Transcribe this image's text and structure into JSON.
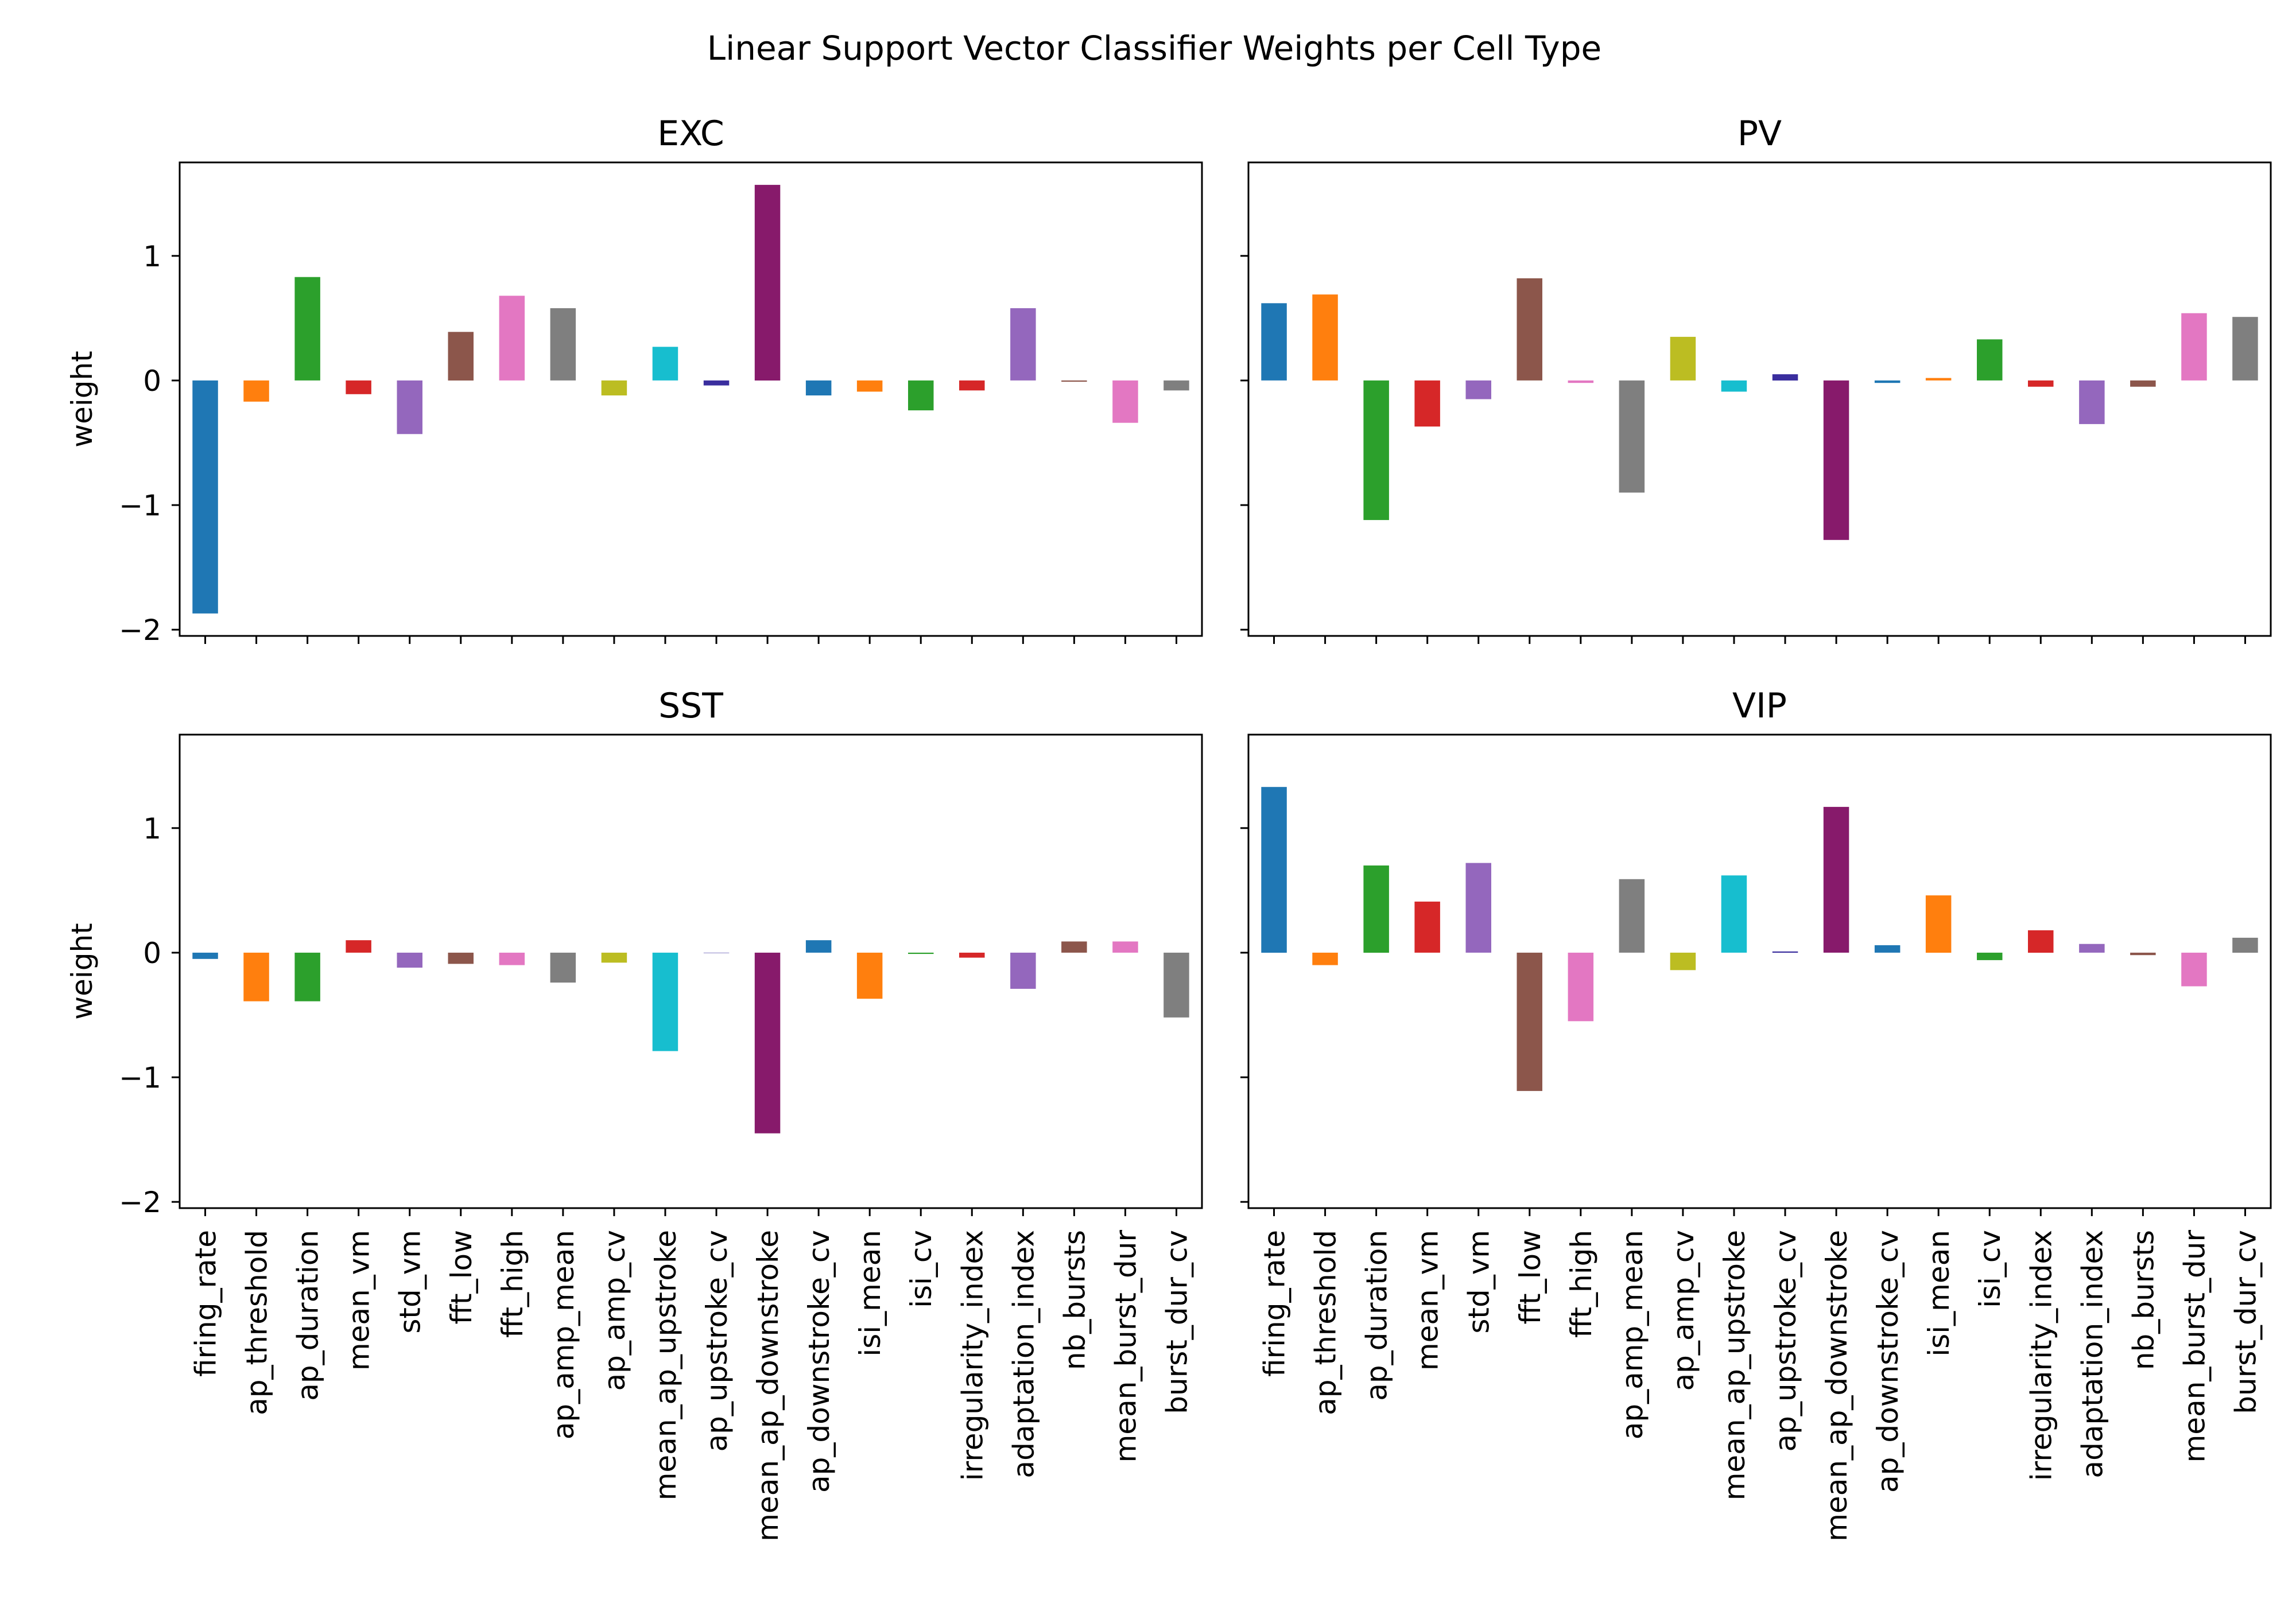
{
  "figure": {
    "title": "Linear Support Vector Classifier Weights per Cell Type"
  },
  "chart_data": [
    {
      "type": "bar",
      "title": "EXC",
      "xlabel": "",
      "ylabel": "weight",
      "ylim": [
        -2.05,
        1.75
      ],
      "yticks": [
        1,
        0,
        -1,
        -2
      ],
      "ytick_labels": [
        "1",
        "0",
        "−1",
        "−2"
      ],
      "categories": [
        "firing_rate",
        "ap_threshold",
        "ap_duration",
        "mean_vm",
        "std_vm",
        "fft_low",
        "fft_high",
        "ap_amp_mean",
        "ap_amp_cv",
        "mean_ap_upstroke",
        "ap_upstroke_cv",
        "mean_ap_downstroke",
        "ap_downstroke_cv",
        "isi_mean",
        "isi_cv",
        "irregularity_index",
        "adaptation_index",
        "nb_bursts",
        "mean_burst_dur",
        "burst_dur_cv"
      ],
      "values": [
        -1.87,
        -0.17,
        0.83,
        -0.11,
        -0.43,
        0.39,
        0.68,
        0.58,
        -0.12,
        0.27,
        -0.04,
        1.57,
        -0.12,
        -0.09,
        -0.24,
        -0.08,
        0.58,
        -0.01,
        -0.34,
        -0.08
      ],
      "colors": [
        "#1f77b4",
        "#ff7f0e",
        "#2ca02c",
        "#d62728",
        "#9467bd",
        "#8c564b",
        "#e377c2",
        "#7f7f7f",
        "#bcbd22",
        "#17becf",
        "#3a2e9e",
        "#871a6b",
        "#1f77b4",
        "#ff7f0e",
        "#2ca02c",
        "#d62728",
        "#9467bd",
        "#8c564b",
        "#e377c2",
        "#7f7f7f"
      ],
      "show_xtick_labels": false,
      "show_ytick_labels": true,
      "grid": false
    },
    {
      "type": "bar",
      "title": "PV",
      "xlabel": "",
      "ylabel": "",
      "ylim": [
        -2.05,
        1.75
      ],
      "yticks": [
        1,
        0,
        -1,
        -2
      ],
      "ytick_labels": [
        "1",
        "0",
        "−1",
        "−2"
      ],
      "categories": [
        "firing_rate",
        "ap_threshold",
        "ap_duration",
        "mean_vm",
        "std_vm",
        "fft_low",
        "fft_high",
        "ap_amp_mean",
        "ap_amp_cv",
        "mean_ap_upstroke",
        "ap_upstroke_cv",
        "mean_ap_downstroke",
        "ap_downstroke_cv",
        "isi_mean",
        "isi_cv",
        "irregularity_index",
        "adaptation_index",
        "nb_bursts",
        "mean_burst_dur",
        "burst_dur_cv"
      ],
      "values": [
        0.62,
        0.69,
        -1.12,
        -0.37,
        -0.15,
        0.82,
        -0.02,
        -0.9,
        0.35,
        -0.09,
        0.05,
        -1.28,
        -0.02,
        0.02,
        0.33,
        -0.05,
        -0.35,
        -0.05,
        0.54,
        0.51
      ],
      "colors": [
        "#1f77b4",
        "#ff7f0e",
        "#2ca02c",
        "#d62728",
        "#9467bd",
        "#8c564b",
        "#e377c2",
        "#7f7f7f",
        "#bcbd22",
        "#17becf",
        "#3a2e9e",
        "#871a6b",
        "#1f77b4",
        "#ff7f0e",
        "#2ca02c",
        "#d62728",
        "#9467bd",
        "#8c564b",
        "#e377c2",
        "#7f7f7f"
      ],
      "show_xtick_labels": false,
      "show_ytick_labels": false,
      "grid": false
    },
    {
      "type": "bar",
      "title": "SST",
      "xlabel": "",
      "ylabel": "weight",
      "ylim": [
        -2.05,
        1.75
      ],
      "yticks": [
        1,
        0,
        -1,
        -2
      ],
      "ytick_labels": [
        "1",
        "0",
        "−1",
        "−2"
      ],
      "categories": [
        "firing_rate",
        "ap_threshold",
        "ap_duration",
        "mean_vm",
        "std_vm",
        "fft_low",
        "fft_high",
        "ap_amp_mean",
        "ap_amp_cv",
        "mean_ap_upstroke",
        "ap_upstroke_cv",
        "mean_ap_downstroke",
        "ap_downstroke_cv",
        "isi_mean",
        "isi_cv",
        "irregularity_index",
        "adaptation_index",
        "nb_bursts",
        "mean_burst_dur",
        "burst_dur_cv"
      ],
      "values": [
        -0.05,
        -0.39,
        -0.39,
        0.1,
        -0.12,
        -0.09,
        -0.1,
        -0.24,
        -0.08,
        -0.79,
        0.0,
        -1.45,
        0.1,
        -0.37,
        -0.01,
        -0.04,
        -0.29,
        0.09,
        0.09,
        -0.52
      ],
      "colors": [
        "#1f77b4",
        "#ff7f0e",
        "#2ca02c",
        "#d62728",
        "#9467bd",
        "#8c564b",
        "#e377c2",
        "#7f7f7f",
        "#bcbd22",
        "#17becf",
        "#3a2e9e",
        "#871a6b",
        "#1f77b4",
        "#ff7f0e",
        "#2ca02c",
        "#d62728",
        "#9467bd",
        "#8c564b",
        "#e377c2",
        "#7f7f7f"
      ],
      "show_xtick_labels": true,
      "show_ytick_labels": true,
      "grid": false
    },
    {
      "type": "bar",
      "title": "VIP",
      "xlabel": "",
      "ylabel": "",
      "ylim": [
        -2.05,
        1.75
      ],
      "yticks": [
        1,
        0,
        -1,
        -2
      ],
      "ytick_labels": [
        "1",
        "0",
        "−1",
        "−2"
      ],
      "categories": [
        "firing_rate",
        "ap_threshold",
        "ap_duration",
        "mean_vm",
        "std_vm",
        "fft_low",
        "fft_high",
        "ap_amp_mean",
        "ap_amp_cv",
        "mean_ap_upstroke",
        "ap_upstroke_cv",
        "mean_ap_downstroke",
        "ap_downstroke_cv",
        "isi_mean",
        "isi_cv",
        "irregularity_index",
        "adaptation_index",
        "nb_bursts",
        "mean_burst_dur",
        "burst_dur_cv"
      ],
      "values": [
        1.33,
        -0.1,
        0.7,
        0.41,
        0.72,
        -1.11,
        -0.55,
        0.59,
        -0.14,
        0.62,
        0.01,
        1.17,
        0.06,
        0.46,
        -0.06,
        0.18,
        0.07,
        -0.02,
        -0.27,
        0.12
      ],
      "colors": [
        "#1f77b4",
        "#ff7f0e",
        "#2ca02c",
        "#d62728",
        "#9467bd",
        "#8c564b",
        "#e377c2",
        "#7f7f7f",
        "#bcbd22",
        "#17becf",
        "#3a2e9e",
        "#871a6b",
        "#1f77b4",
        "#ff7f0e",
        "#2ca02c",
        "#d62728",
        "#9467bd",
        "#8c564b",
        "#e377c2",
        "#7f7f7f"
      ],
      "show_xtick_labels": true,
      "show_ytick_labels": false,
      "grid": false
    }
  ]
}
